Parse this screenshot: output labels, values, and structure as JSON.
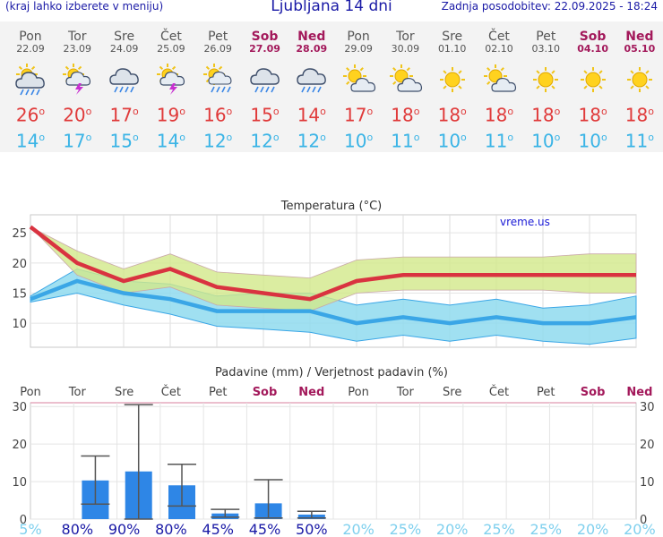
{
  "header": {
    "left_note": "(kraj lahko izberete v meniju)",
    "title": "Ljubljana 14 dni",
    "updated": "Zadnja posodobitev: 22.09.2025 - 18:24"
  },
  "days": [
    {
      "name": "Pon",
      "date": "22.09",
      "weekend": false,
      "icon": "partly-cloudy-rain-icon",
      "tmax": "26",
      "tmin": "14"
    },
    {
      "name": "Tor",
      "date": "23.09",
      "weekend": false,
      "icon": "sun-thunderstorm-icon",
      "tmax": "20",
      "tmin": "17"
    },
    {
      "name": "Sre",
      "date": "24.09",
      "weekend": false,
      "icon": "rain-cloud-icon",
      "tmax": "17",
      "tmin": "15"
    },
    {
      "name": "Čet",
      "date": "25.09",
      "weekend": false,
      "icon": "sun-thunderstorm-icon",
      "tmax": "19",
      "tmin": "14"
    },
    {
      "name": "Pet",
      "date": "26.09",
      "weekend": false,
      "icon": "sun-rain-icon",
      "tmax": "16",
      "tmin": "12"
    },
    {
      "name": "Sob",
      "date": "27.09",
      "weekend": true,
      "icon": "rain-cloud-icon",
      "tmax": "15",
      "tmin": "12"
    },
    {
      "name": "Ned",
      "date": "28.09",
      "weekend": true,
      "icon": "rain-cloud-icon",
      "tmax": "14",
      "tmin": "12"
    },
    {
      "name": "Pon",
      "date": "29.09",
      "weekend": false,
      "icon": "sun-cloud-icon",
      "tmax": "17",
      "tmin": "10"
    },
    {
      "name": "Tor",
      "date": "30.09",
      "weekend": false,
      "icon": "sun-cloud-icon",
      "tmax": "18",
      "tmin": "11"
    },
    {
      "name": "Sre",
      "date": "01.10",
      "weekend": false,
      "icon": "sun-icon",
      "tmax": "18",
      "tmin": "10"
    },
    {
      "name": "Čet",
      "date": "02.10",
      "weekend": false,
      "icon": "sun-cloud-icon",
      "tmax": "18",
      "tmin": "11"
    },
    {
      "name": "Pet",
      "date": "03.10",
      "weekend": false,
      "icon": "sun-icon",
      "tmax": "18",
      "tmin": "10"
    },
    {
      "name": "Sob",
      "date": "04.10",
      "weekend": true,
      "icon": "sun-icon",
      "tmax": "18",
      "tmin": "10"
    },
    {
      "name": "Ned",
      "date": "05.10",
      "weekend": true,
      "icon": "sun-icon",
      "tmax": "18",
      "tmin": "11"
    }
  ],
  "colors": {
    "max_line": "#d93340",
    "min_line": "#3aa6e6",
    "max_band": "#d2e88a",
    "min_band": "#8fdbee",
    "bar": "#2e86e6",
    "weekend": "#a3195b",
    "prob_high": "#1a1aa6",
    "prob_low": "#7fd0ee"
  },
  "chart_data": [
    {
      "type": "line",
      "title": "Temperatura (°C)",
      "watermark": "vreme.us",
      "ylim": [
        6,
        28
      ],
      "yticks": [
        10,
        15,
        20,
        25
      ],
      "series": [
        {
          "values": [
            26,
            20,
            17,
            19,
            16,
            15,
            14,
            17,
            18,
            18,
            18,
            18,
            18,
            18
          ]
        },
        {
          "values": [
            14,
            17,
            15,
            14,
            12,
            12,
            12,
            10,
            11,
            10,
            11,
            10,
            10,
            11
          ]
        }
      ],
      "max_band_low": [
        26,
        18,
        15,
        16,
        13,
        12.5,
        12,
        15,
        15.5,
        15.5,
        15.5,
        15.5,
        15,
        15
      ],
      "max_band_high": [
        26,
        22,
        19,
        21.5,
        18.5,
        18,
        17.5,
        20.5,
        21,
        21,
        21,
        21,
        21.5,
        21.5
      ],
      "min_band_low": [
        13.5,
        15,
        13,
        11.5,
        9.5,
        9,
        8.5,
        7,
        8,
        7,
        8,
        7,
        6.5,
        7.5
      ],
      "min_band_high": [
        14.5,
        19,
        17,
        16.5,
        14.5,
        15,
        15,
        13,
        14,
        13,
        14,
        12.5,
        13,
        14.5
      ]
    },
    {
      "type": "bar",
      "title": "Padavine (mm) / Verjetnost padavin (%)",
      "ylim": [
        0,
        31
      ],
      "yticks": [
        0,
        10,
        20,
        30
      ],
      "categories": [
        "Pon",
        "Tor",
        "Sre",
        "Čet",
        "Pet",
        "Sob",
        "Ned",
        "Pon",
        "Tor",
        "Sre",
        "Čet",
        "Pet",
        "Sob",
        "Ned"
      ],
      "weekend": [
        false,
        false,
        false,
        false,
        false,
        true,
        true,
        false,
        false,
        false,
        false,
        false,
        true,
        true
      ],
      "values": [
        0,
        10.3,
        12.7,
        9,
        1.5,
        4.2,
        1.2,
        0,
        0,
        0,
        0,
        0,
        0,
        0
      ],
      "err_low": [
        0,
        4,
        0,
        3.5,
        0.5,
        0.3,
        0.3,
        0,
        0,
        0,
        0,
        0,
        0,
        0
      ],
      "err_high": [
        0,
        16.8,
        30.5,
        14.6,
        2.6,
        10.5,
        2.1,
        0,
        0,
        0,
        0,
        0,
        0,
        0
      ],
      "probability": [
        "5%",
        "80%",
        "90%",
        "80%",
        "45%",
        "45%",
        "50%",
        "20%",
        "25%",
        "20%",
        "25%",
        "25%",
        "20%",
        "20%"
      ]
    }
  ]
}
